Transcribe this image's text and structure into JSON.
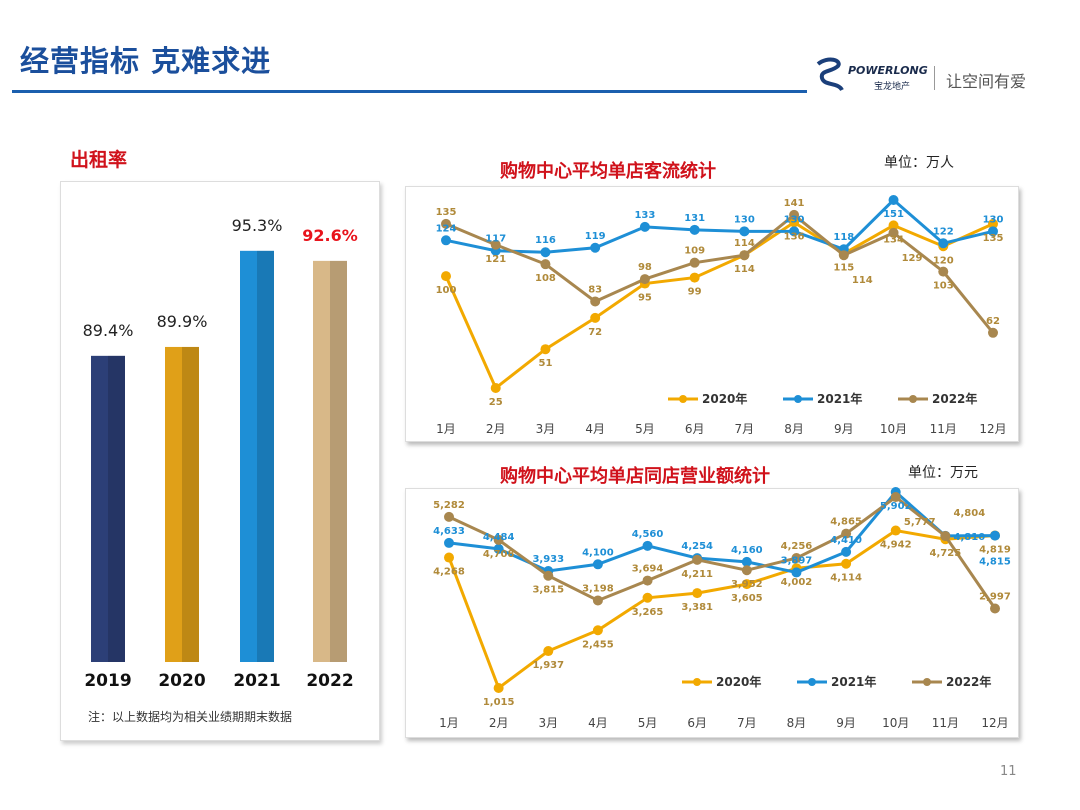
{
  "header": {
    "title": "经营指标 克难求进",
    "logo_en": "POWERLONG",
    "logo_cn": "宝龙地产",
    "slogan": "让空间有爱",
    "brand_color": "#1b4f9c"
  },
  "occupancy": {
    "title": "出租率",
    "note": "注：以上数据均为相关业绩期期末数据",
    "chart_data": {
      "type": "bar",
      "categories": [
        "2019",
        "2020",
        "2021",
        "2022"
      ],
      "values": [
        89.4,
        89.9,
        95.3,
        92.6
      ],
      "labels": [
        "89.4%",
        "89.9%",
        "95.3%",
        "92.6%"
      ],
      "colors": [
        "#2c3f77",
        "#e0a018",
        "#1e8fd6",
        "#d8b888"
      ],
      "highlight_color": "#e8141c"
    }
  },
  "traffic": {
    "title": "购物中心平均单店客流统计",
    "unit": "单位：万人",
    "chart_data": {
      "type": "line",
      "categories": [
        "1月",
        "2月",
        "3月",
        "4月",
        "5月",
        "6月",
        "7月",
        "8月",
        "9月",
        "10月",
        "11月",
        "12月"
      ],
      "series": [
        {
          "name": "2020年",
          "color": "#f2a900",
          "values": [
            100,
            25,
            51,
            72,
            95,
            99,
            114,
            136,
            115,
            134,
            120,
            135
          ]
        },
        {
          "name": "2021年",
          "color": "#1e8fd6",
          "values": [
            124,
            117,
            116,
            119,
            133,
            131,
            130,
            130,
            118,
            151,
            122,
            130
          ]
        },
        {
          "name": "2022年",
          "color": "#a8874f",
          "values": [
            135,
            121,
            108,
            83,
            98,
            109,
            114,
            141,
            114,
            129,
            103,
            62
          ]
        }
      ],
      "legend": "bottom"
    }
  },
  "sales": {
    "title": "购物中心平均单店同店营业额统计",
    "unit": "单位：万元",
    "chart_data": {
      "type": "line",
      "categories": [
        "1月",
        "2月",
        "3月",
        "4月",
        "5月",
        "6月",
        "7月",
        "8月",
        "9月",
        "10月",
        "11月",
        "12月"
      ],
      "series": [
        {
          "name": "2020年",
          "color": "#f2a900",
          "values": [
            4268,
            1015,
            1937,
            2455,
            3265,
            3381,
            3605,
            4002,
            4114,
            4942,
            4725,
            4819
          ]
        },
        {
          "name": "2021年",
          "color": "#1e8fd6",
          "values": [
            4633,
            4484,
            3933,
            4100,
            4560,
            4254,
            4160,
            3897,
            4410,
            5902,
            4810,
            4815
          ]
        },
        {
          "name": "2022年",
          "color": "#a8874f",
          "values": [
            5282,
            4708,
            3815,
            3198,
            3694,
            4211,
            3952,
            4256,
            4865,
            5777,
            4804,
            2997
          ]
        }
      ],
      "legend": "bottom"
    }
  },
  "page_number": "11"
}
